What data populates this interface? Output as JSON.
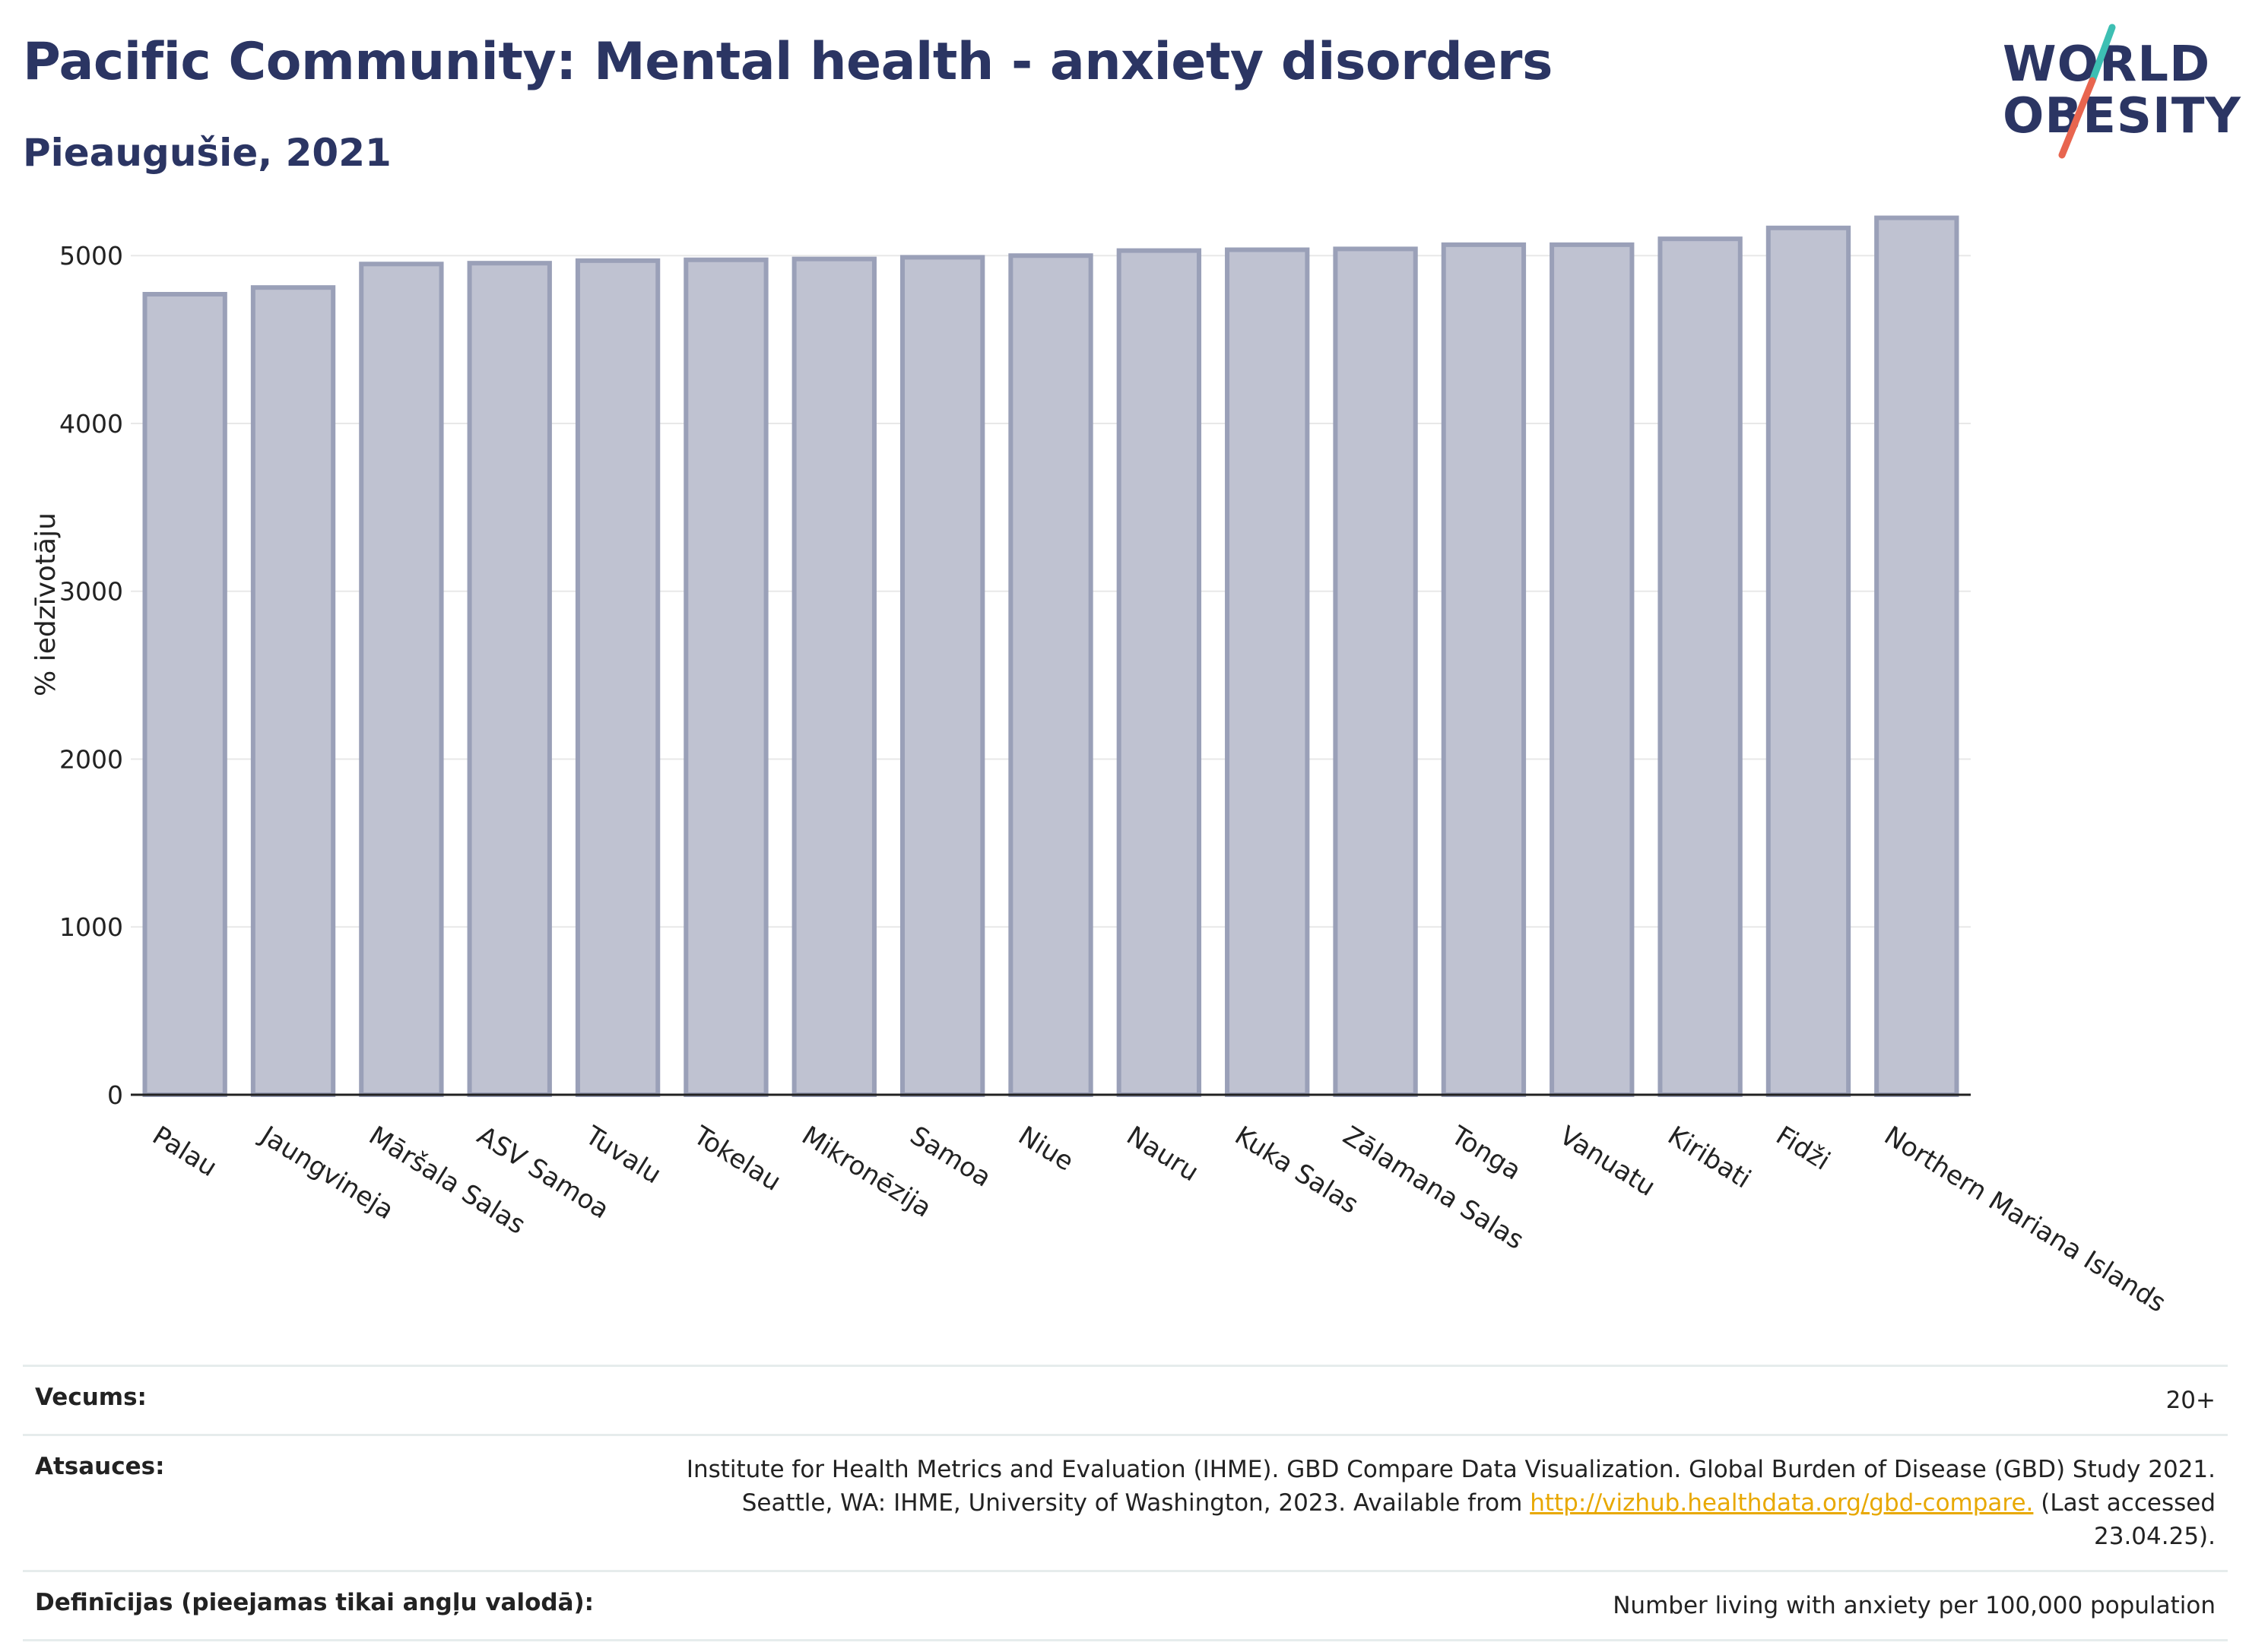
{
  "header": {
    "title": "Pacific Community: Mental health - anxiety disorders",
    "subtitle": "Pieaugušie, 2021"
  },
  "logo": {
    "line1": "WORLD",
    "line2": "OBESITY",
    "colors": {
      "text": "#2b3563",
      "slash_top": "#3dbfb3",
      "slash_bottom": "#e8654f"
    }
  },
  "chart_data": {
    "type": "bar",
    "categories": [
      "Palau",
      "Jaungvineja",
      "Māršala Salas",
      "ASV Samoa",
      "Tuvalu",
      "Tokelau",
      "Mikronēzija",
      "Samoa",
      "Niue",
      "Nauru",
      "Kuka Salas",
      "Zālamana Salas",
      "Tonga",
      "Vanuatu",
      "Kiribati",
      "Fidži",
      "Northern Mariana Islands"
    ],
    "values": [
      4770,
      4810,
      4950,
      4955,
      4970,
      4975,
      4980,
      4990,
      5000,
      5030,
      5035,
      5040,
      5065,
      5065,
      5100,
      5165,
      5225
    ],
    "ylabel": "% iedzīvotāju",
    "xlabel": "",
    "ylim": [
      0,
      5300
    ],
    "yticks": [
      0,
      1000,
      2000,
      3000,
      4000,
      5000
    ],
    "grid": true,
    "colors": {
      "bar_fill": "#bfc2d1",
      "bar_stroke": "#9aa0b8",
      "grid": "#e8e8e8",
      "axis": "#222222"
    }
  },
  "footer": {
    "rows": [
      {
        "label": "Vecums:",
        "value": "20+"
      },
      {
        "label": "Atsauces:",
        "value_lines": [
          "Institute for Health Metrics and Evaluation (IHME). GBD Compare Data Visualization. Global Burden of Disease (GBD) Study 2021.",
          "Seattle, WA: IHME, University of Washington, 2023. Available from",
          "(Last accessed",
          "23.04.25)."
        ],
        "link": "http://vizhub.healthdata.org/gbd-compare."
      },
      {
        "label": "Definīcijas (pieejamas tikai angļu valodā):",
        "value": "Number living with anxiety per 100,000 population"
      }
    ]
  }
}
